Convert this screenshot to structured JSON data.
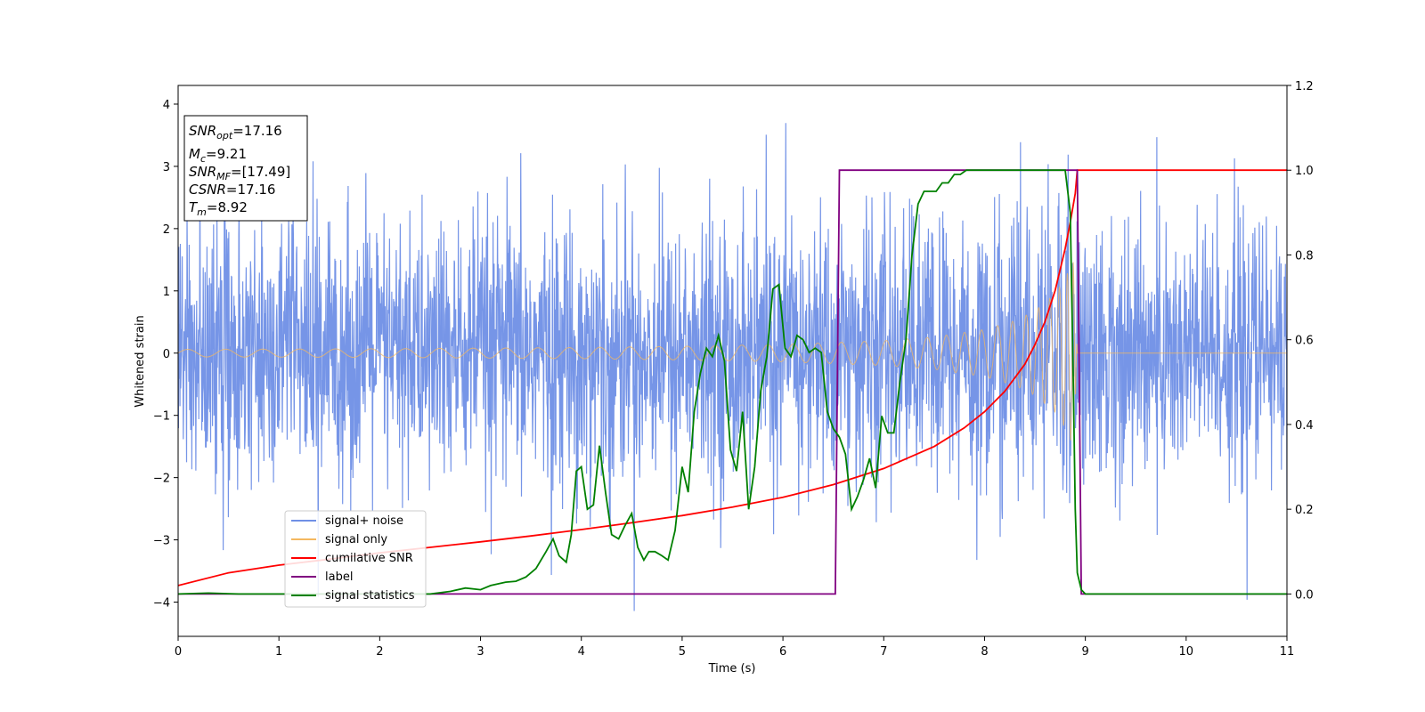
{
  "chart_data": {
    "type": "line",
    "xlabel": "Time (s)",
    "ylabel": "Whitened strain",
    "xlim": [
      0,
      11
    ],
    "ylim_left": [
      -4.55,
      4.3
    ],
    "ylim_right": [
      -0.1,
      1.2
    ],
    "x_ticks": [
      0,
      1,
      2,
      3,
      4,
      5,
      6,
      7,
      8,
      9,
      10,
      11
    ],
    "y_left_ticks": [
      -4,
      -3,
      -2,
      -1,
      0,
      1,
      2,
      3,
      4
    ],
    "y_right_ticks": [
      0.0,
      0.2,
      0.4,
      0.6,
      0.8,
      1.0,
      1.2
    ],
    "grid": false,
    "legend_position": "lower-left",
    "annotation": {
      "snr_opt": {
        "label": "SNR",
        "sub": "opt",
        "value": "=17.16"
      },
      "mc": {
        "label": "M",
        "sub": "c",
        "value": "=9.21"
      },
      "snr_mf": {
        "label": "SNR",
        "sub": "MF",
        "value": "=[17.49]"
      },
      "csnr": {
        "label": "CSNR",
        "sub": "",
        "value": "=17.16"
      },
      "tm": {
        "label": "T",
        "sub": "m",
        "value": "=8.92"
      }
    },
    "series": [
      {
        "key": "noise",
        "name": "signal+ noise",
        "axis": "left",
        "color": "#6f8fe6",
        "description": "whitened strain, gaussian-like noise with amplitude up to about ±4, spanning 0 to 11 s",
        "x_range": [
          0,
          11
        ]
      },
      {
        "key": "signal",
        "name": "signal only",
        "axis": "left",
        "color": "#f4b860",
        "description": "chirp waveform, amplitude ~0.06 at t=0 growing to ~1.5 near t=8.88 s, zero afterwards",
        "envelope": {
          "t": [
            0,
            2,
            4,
            5,
            6,
            7,
            7.5,
            8,
            8.3,
            8.5,
            8.7,
            8.8,
            8.88,
            8.92,
            11
          ],
          "amp": [
            0.06,
            0.07,
            0.09,
            0.11,
            0.14,
            0.2,
            0.26,
            0.38,
            0.52,
            0.68,
            0.95,
            1.2,
            1.5,
            0.0,
            0.0
          ]
        }
      },
      {
        "key": "csnr",
        "name": "cumilative SNR",
        "axis": "right",
        "color": "#ff0000",
        "x": [
          0,
          0.5,
          1,
          1.5,
          2,
          2.5,
          3,
          3.5,
          4,
          4.5,
          5,
          5.5,
          6,
          6.5,
          7,
          7.5,
          7.8,
          8,
          8.2,
          8.4,
          8.5,
          8.6,
          8.7,
          8.8,
          8.85,
          8.9,
          8.92,
          11
        ],
        "values": [
          0.02,
          0.05,
          0.068,
          0.082,
          0.097,
          0.11,
          0.123,
          0.137,
          0.152,
          0.168,
          0.185,
          0.205,
          0.228,
          0.258,
          0.296,
          0.348,
          0.392,
          0.43,
          0.478,
          0.542,
          0.588,
          0.643,
          0.716,
          0.815,
          0.877,
          0.945,
          1.0,
          1.0
        ]
      },
      {
        "key": "label",
        "name": "label",
        "axis": "right",
        "color": "#800080",
        "x": [
          0,
          6.52,
          6.56,
          8.92,
          8.96,
          11
        ],
        "values": [
          0,
          0,
          1,
          1,
          0,
          0
        ]
      },
      {
        "key": "stats",
        "name": "signal statistics",
        "axis": "right",
        "color": "#008000",
        "x": [
          0,
          0.3,
          0.6,
          1,
          1.5,
          2,
          2.5,
          2.7,
          2.85,
          3,
          3.1,
          3.25,
          3.35,
          3.45,
          3.55,
          3.65,
          3.72,
          3.78,
          3.85,
          3.9,
          3.95,
          4.0,
          4.06,
          4.12,
          4.18,
          4.24,
          4.3,
          4.37,
          4.43,
          4.5,
          4.56,
          4.62,
          4.67,
          4.73,
          4.8,
          4.86,
          4.93,
          5.0,
          5.06,
          5.12,
          5.18,
          5.24,
          5.3,
          5.36,
          5.42,
          5.48,
          5.54,
          5.6,
          5.66,
          5.72,
          5.78,
          5.84,
          5.9,
          5.96,
          6.02,
          6.08,
          6.14,
          6.2,
          6.26,
          6.32,
          6.38,
          6.44,
          6.5,
          6.56,
          6.62,
          6.68,
          6.74,
          6.8,
          6.86,
          6.92,
          6.98,
          7.04,
          7.1,
          7.16,
          7.22,
          7.28,
          7.34,
          7.4,
          7.46,
          7.52,
          7.58,
          7.64,
          7.7,
          7.76,
          7.82,
          7.88,
          7.94,
          8.0,
          8.1,
          8.3,
          8.5,
          8.7,
          8.8,
          8.85,
          8.88,
          8.9,
          8.92,
          8.96,
          9.0,
          11
        ],
        "values": [
          0,
          0.002,
          0,
          0,
          0,
          0,
          0,
          0.006,
          0.014,
          0.01,
          0.02,
          0.028,
          0.03,
          0.04,
          0.06,
          0.1,
          0.13,
          0.09,
          0.075,
          0.14,
          0.29,
          0.3,
          0.2,
          0.21,
          0.35,
          0.24,
          0.14,
          0.13,
          0.16,
          0.19,
          0.11,
          0.08,
          0.1,
          0.1,
          0.09,
          0.08,
          0.15,
          0.3,
          0.24,
          0.43,
          0.52,
          0.58,
          0.56,
          0.61,
          0.55,
          0.34,
          0.29,
          0.43,
          0.2,
          0.3,
          0.48,
          0.56,
          0.72,
          0.73,
          0.58,
          0.56,
          0.61,
          0.6,
          0.57,
          0.58,
          0.57,
          0.43,
          0.39,
          0.37,
          0.33,
          0.2,
          0.23,
          0.27,
          0.32,
          0.25,
          0.42,
          0.38,
          0.38,
          0.5,
          0.6,
          0.8,
          0.92,
          0.95,
          0.95,
          0.95,
          0.97,
          0.97,
          0.99,
          0.99,
          1.0,
          1.0,
          1.0,
          1.0,
          1.0,
          1.0,
          1.0,
          1.0,
          1.0,
          0.9,
          0.5,
          0.2,
          0.05,
          0.01,
          0,
          0
        ]
      }
    ]
  }
}
